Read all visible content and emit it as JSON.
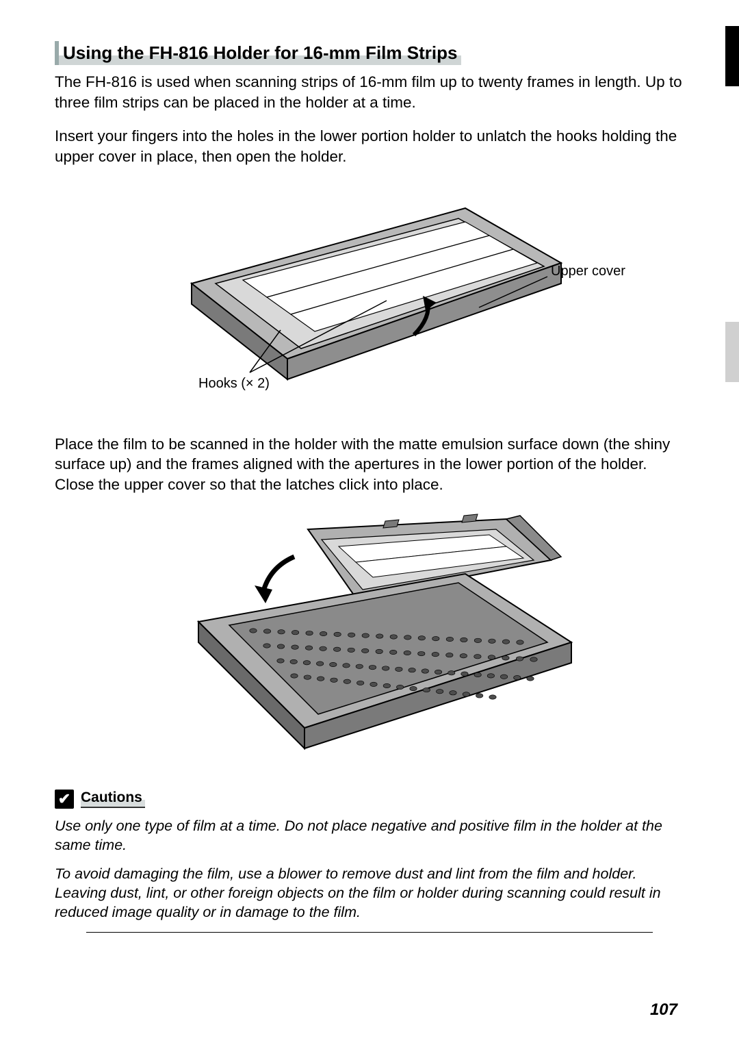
{
  "heading": "Using the FH-816 Holder for 16-mm Film Strips",
  "para1": "The FH-816 is used when scanning strips of 16-mm film up to twenty frames in length.  Up to three film strips can be placed in the holder at a time.",
  "para2": "Insert your fingers into the holes in the lower portion holder to unlatch the hooks holding the upper cover in place, then open the holder.",
  "figure1": {
    "label_left": "Hooks (× 2)",
    "label_right": "Upper cover",
    "colors": {
      "outline": "#000000",
      "fill_light": "#d9d9d9",
      "fill_mid": "#b8b8b8",
      "fill_dark": "#8e8e8e",
      "slot": "#ffffff"
    }
  },
  "para3": "Place the film to be scanned in the holder with the matte emulsion surface down (the shiny surface up) and the frames aligned with the apertures in the lower portion of the holder.  Close the upper cover so that the latches click into place.",
  "figure2": {
    "colors": {
      "outline": "#000000",
      "fill_light": "#d9d9d9",
      "fill_mid": "#b0b0b0",
      "fill_dark": "#7a7a7a",
      "hole": "#5a5a5a"
    }
  },
  "cautions": {
    "icon_glyph": "✔",
    "label": "Cautions",
    "text1": "Use only one type of film at a time.  Do not place negative and positive film in the holder at the same time.",
    "text2": "To avoid damaging the film, use a blower to remove dust and lint from the film and holder.  Leaving dust, lint, or other foreign objects on the film or holder during scanning could result in reduced image quality or in damage to the film."
  },
  "page_number": "107"
}
